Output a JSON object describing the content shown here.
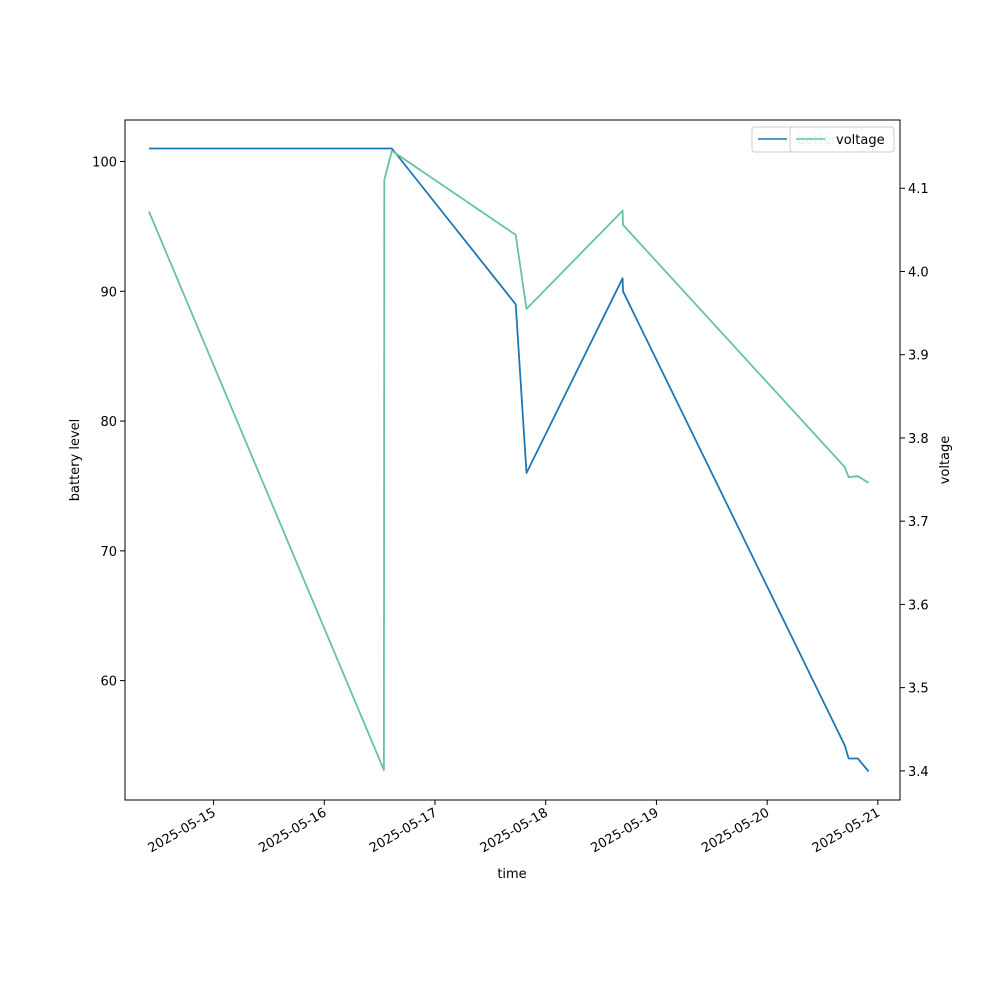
{
  "chart_data": {
    "type": "line",
    "xlabel": "time",
    "ylabel_left": "battery level",
    "ylabel_right": "voltage",
    "x_ticks": [
      "2025-05-15",
      "2025-05-16",
      "2025-05-17",
      "2025-05-18",
      "2025-05-19",
      "2025-05-20",
      "2025-05-21"
    ],
    "y_left_ticks": [
      60,
      70,
      80,
      90,
      100
    ],
    "y_right_ticks": [
      "3.4",
      "3.5",
      "3.6",
      "3.7",
      "3.8",
      "3.9",
      "4.0",
      "4.1"
    ],
    "xlim": [
      "2025-05-14T04:48",
      "2025-05-21T04:48"
    ],
    "ylim_left": [
      50.8,
      103.2
    ],
    "ylim_right": [
      3.365,
      4.182
    ],
    "colors": {
      "battery": "#1f77b4",
      "voltage": "#66c2a5"
    },
    "series": [
      {
        "name": "battery",
        "axis": "left",
        "color": "#1f77b4",
        "points": [
          [
            "2025-05-14T10:00",
            101
          ],
          [
            "2025-05-16T14:40",
            101
          ],
          [
            "2025-05-17T17:30",
            89
          ],
          [
            "2025-05-17T19:50",
            76
          ],
          [
            "2025-05-18T16:40",
            91
          ],
          [
            "2025-05-18T16:45",
            90
          ],
          [
            "2025-05-20T16:50",
            55
          ],
          [
            "2025-05-20T17:40",
            54
          ],
          [
            "2025-05-20T19:40",
            54
          ],
          [
            "2025-05-20T22:00",
            53
          ]
        ]
      },
      {
        "name": "voltage",
        "axis": "right",
        "color": "#66c2a5",
        "points": [
          [
            "2025-05-14T10:00",
            4.072
          ],
          [
            "2025-05-16T12:55",
            3.401
          ],
          [
            "2025-05-16T13:00",
            4.11
          ],
          [
            "2025-05-16T14:40",
            4.145
          ],
          [
            "2025-05-17T17:30",
            4.044
          ],
          [
            "2025-05-17T19:50",
            3.955
          ],
          [
            "2025-05-18T16:40",
            4.073
          ],
          [
            "2025-05-18T16:45",
            4.056
          ],
          [
            "2025-05-20T16:50",
            3.765
          ],
          [
            "2025-05-20T17:40",
            3.753
          ],
          [
            "2025-05-20T19:40",
            3.754
          ],
          [
            "2025-05-20T22:00",
            3.746
          ]
        ]
      }
    ],
    "legend_left": {
      "label": "battery",
      "placement": "upper-right"
    },
    "legend_right": {
      "label": "voltage",
      "placement": "upper-right"
    }
  }
}
